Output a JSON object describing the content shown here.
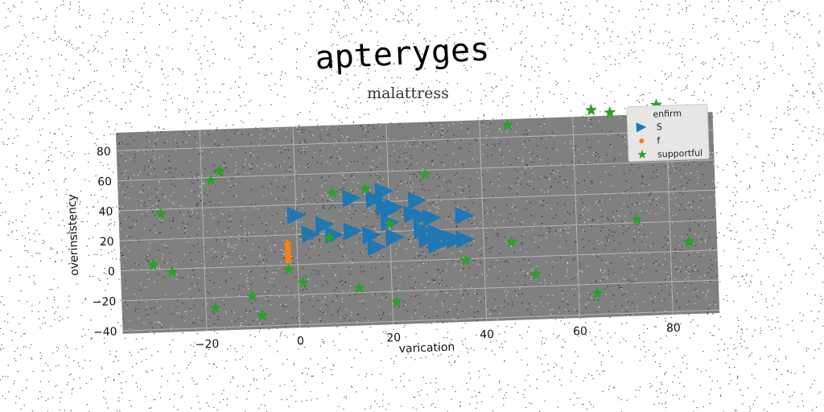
{
  "chart_data": {
    "type": "scatter",
    "title": "apteryges",
    "subtitle": "malattress",
    "xlabel": "varication",
    "ylabel": "overinsistency",
    "xlim": [
      -38,
      90
    ],
    "ylim": [
      -42,
      92
    ],
    "xticks": [
      -20,
      0,
      20,
      40,
      60,
      80
    ],
    "yticks": [
      -40,
      -20,
      0,
      20,
      40,
      60,
      80
    ],
    "grid": true,
    "legend": {
      "title": "enfirm",
      "placement": "top-right"
    },
    "series": [
      {
        "name": "S",
        "marker": "triangle-right",
        "color": "#1f77b4",
        "points": [
          [
            0,
            33
          ],
          [
            3,
            20
          ],
          [
            6,
            26
          ],
          [
            8,
            19
          ],
          [
            12,
            43
          ],
          [
            12,
            21
          ],
          [
            16,
            18
          ],
          [
            17,
            10
          ],
          [
            17,
            42
          ],
          [
            19,
            47
          ],
          [
            19,
            37
          ],
          [
            20,
            34
          ],
          [
            20,
            26
          ],
          [
            21,
            16
          ],
          [
            21,
            36
          ],
          [
            25,
            31
          ],
          [
            26,
            40
          ],
          [
            27,
            29
          ],
          [
            27,
            20
          ],
          [
            28,
            14
          ],
          [
            29,
            28
          ],
          [
            30,
            10
          ],
          [
            30,
            18
          ],
          [
            31,
            16
          ],
          [
            33,
            14
          ],
          [
            34,
            13
          ],
          [
            36,
            13
          ],
          [
            36,
            29
          ]
        ]
      },
      {
        "name": "f",
        "marker": "circle",
        "color": "#ff7f0e",
        "points": [
          [
            -2,
            14
          ],
          [
            -2,
            11
          ],
          [
            -2,
            8
          ],
          [
            -2,
            5
          ],
          [
            -2,
            3
          ]
        ]
      },
      {
        "name": "supportful",
        "marker": "star",
        "color": "#2ca02c",
        "points": [
          [
            -31,
            3
          ],
          [
            -27,
            -2
          ],
          [
            -29,
            37
          ],
          [
            -18,
            58
          ],
          [
            -16,
            64
          ],
          [
            -18,
            -27
          ],
          [
            -10,
            -20
          ],
          [
            -8,
            -33
          ],
          [
            -2,
            -3
          ],
          [
            1,
            -12
          ],
          [
            7,
            17
          ],
          [
            8,
            47
          ],
          [
            13,
            -17
          ],
          [
            15,
            49
          ],
          [
            20,
            25
          ],
          [
            21,
            -27
          ],
          [
            28,
            57
          ],
          [
            36,
            -1
          ],
          [
            46,
            10
          ],
          [
            46,
            88
          ],
          [
            51,
            -12
          ],
          [
            64,
            -26
          ],
          [
            64,
            96
          ],
          [
            68,
            94
          ],
          [
            73,
            22
          ],
          [
            84,
            6
          ],
          [
            78,
            98
          ]
        ]
      }
    ]
  }
}
